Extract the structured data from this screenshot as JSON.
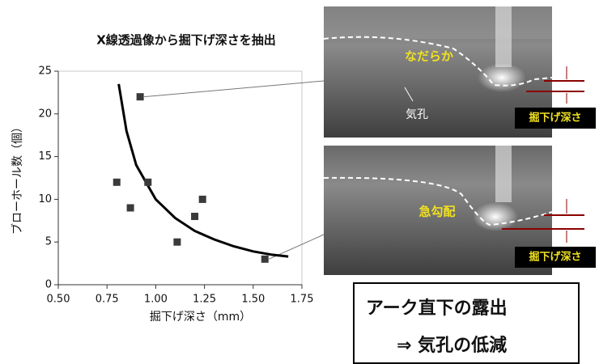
{
  "chart_data": {
    "type": "scatter",
    "title": "X線透過像から掘下げ深さを抽出",
    "x_label": "掘下げ深さ（mm）",
    "y_label": "ブローホール数（個）",
    "x": [
      0.8,
      0.87,
      0.92,
      0.96,
      1.11,
      1.2,
      1.24,
      1.56
    ],
    "values": [
      12,
      9,
      22,
      12,
      5,
      8,
      10,
      3
    ],
    "color": "#3a3a3a",
    "fit_curve": {
      "x": [
        0.81,
        0.85,
        0.9,
        1.0,
        1.1,
        1.2,
        1.3,
        1.4,
        1.5,
        1.6,
        1.68
      ],
      "values": [
        23.5,
        18,
        14,
        10,
        7.8,
        6.3,
        5.3,
        4.5,
        3.9,
        3.5,
        3.3
      ],
      "color": "#000000"
    },
    "xlim": [
      0.5,
      1.75
    ],
    "xticks": [
      {
        "value": 0.5,
        "label": "0.50"
      },
      {
        "value": 0.75,
        "label": "0.75"
      },
      {
        "value": 1,
        "label": "1.00"
      },
      {
        "value": 1.25,
        "label": "1.25"
      },
      {
        "value": 1.5,
        "label": "1.50"
      },
      {
        "value": 1.75,
        "label": "1.75"
      }
    ],
    "ylim": [
      0,
      25
    ],
    "yticks": [
      0,
      5,
      10,
      15,
      20,
      25
    ],
    "grid": false,
    "annotations": {
      "image_top": {
        "shape_label": "なだらか",
        "pore_label": "気孔",
        "depth_label": "掘下げ深さ"
      },
      "image_bottom": {
        "shape_label": "急勾配",
        "depth_label": "掘下げ深さ"
      },
      "conclusion": [
        "アーク直下の露出",
        "⇒ 気孔の低減"
      ]
    }
  }
}
